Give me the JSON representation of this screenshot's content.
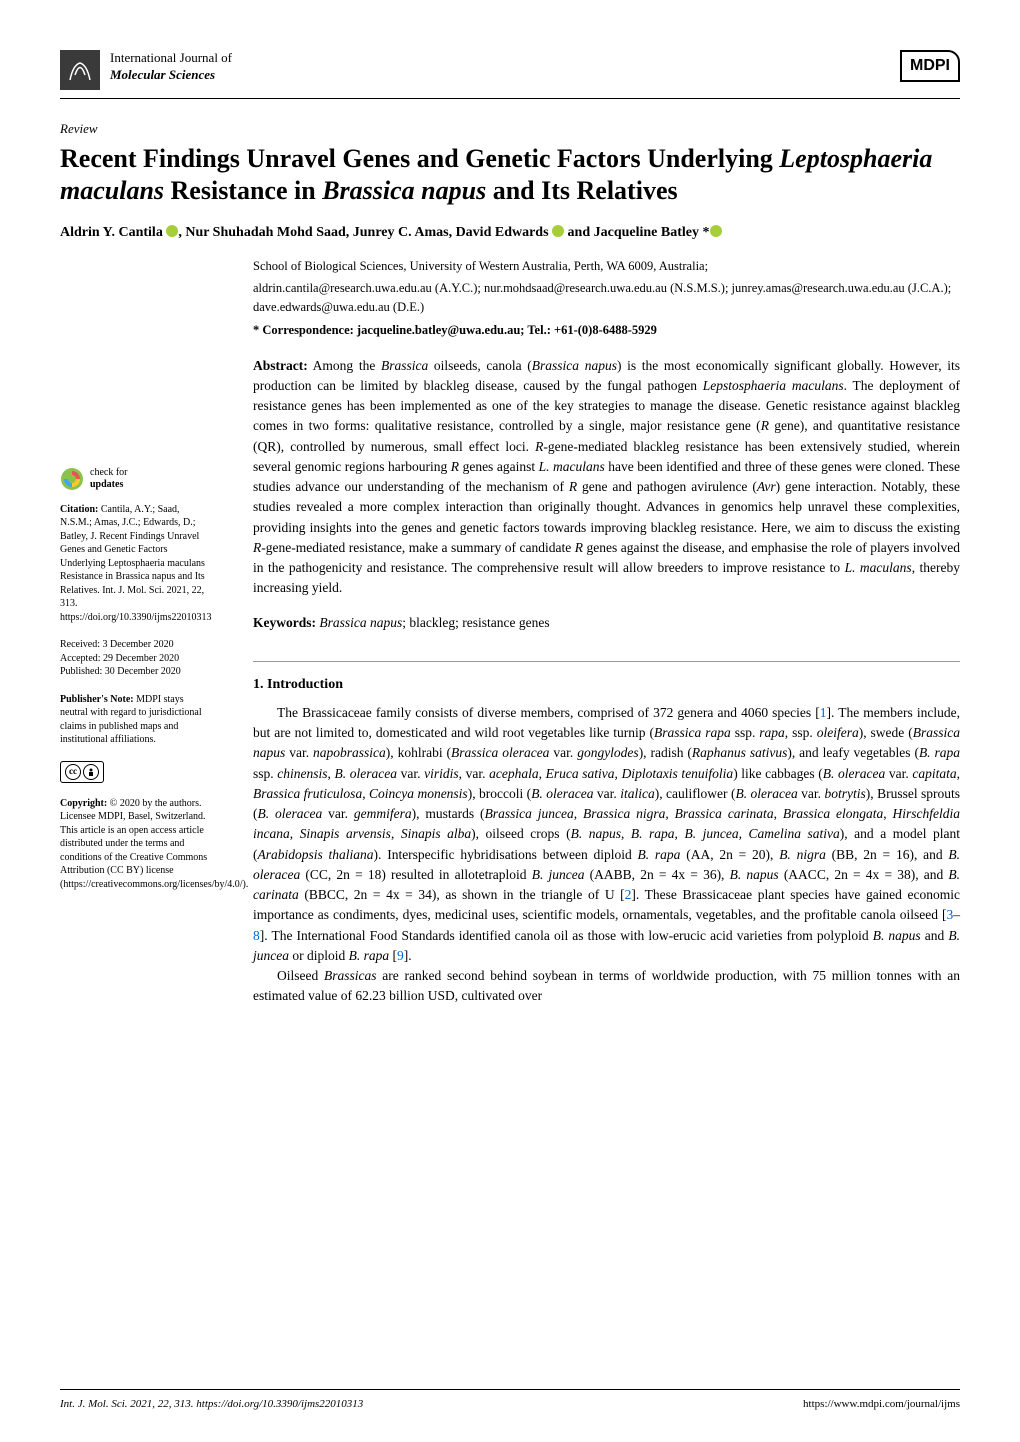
{
  "journal": {
    "line1": "International Journal of",
    "line2": "Molecular Sciences",
    "publisher": "MDPI"
  },
  "article": {
    "type": "Review",
    "title_html": "Recent Findings Unravel Genes and Genetic Factors Underlying <i>Leptosphaeria maculans</i> Resistance in <i>Brassica napus</i> and Its Relatives",
    "authors_html": "Aldrin Y. Cantila <span class='orcid-icon'></span>, Nur Shuhadah Mohd Saad, Junrey C. Amas, David Edwards <span class='orcid-icon'></span> and Jacqueline Batley *<span class='orcid-icon'></span>",
    "affiliation": "School of Biological Sciences, University of Western Australia, Perth, WA 6009, Australia;",
    "emails": "aldrin.cantila@research.uwa.edu.au (A.Y.C.); nur.mohdsaad@research.uwa.edu.au (N.S.M.S.); junrey.amas@research.uwa.edu.au (J.C.A.); dave.edwards@uwa.edu.au (D.E.)",
    "correspondence": "* Correspondence: jacqueline.batley@uwa.edu.au; Tel.: +61-(0)8-6488-5929",
    "abstract_label": "Abstract:",
    "abstract_html": "Among the <i>Brassica</i> oilseeds, canola (<i>Brassica napus</i>) is the most economically significant globally. However, its production can be limited by blackleg disease, caused by the fungal pathogen <i>Lepstosphaeria maculans</i>. The deployment of resistance genes has been implemented as one of the key strategies to manage the disease. Genetic resistance against blackleg comes in two forms: qualitative resistance, controlled by a single, major resistance gene (<i>R</i> gene), and quantitative resistance (QR), controlled by numerous, small effect loci. <i>R</i>-gene-mediated blackleg resistance has been extensively studied, wherein several genomic regions harbouring <i>R</i> genes against <i>L. maculans</i> have been identified and three of these genes were cloned. These studies advance our understanding of the mechanism of <i>R</i> gene and pathogen avirulence (<i>Avr</i>) gene interaction. Notably, these studies revealed a more complex interaction than originally thought. Advances in genomics help unravel these complexities, providing insights into the genes and genetic factors towards improving blackleg resistance. Here, we aim to discuss the existing <i>R</i>-gene-mediated resistance, make a summary of candidate <i>R</i> genes against the disease, and emphasise the role of players involved in the pathogenicity and resistance. The comprehensive result will allow breeders to improve resistance to <i>L. maculans</i>, thereby increasing yield.",
    "keywords_label": "Keywords:",
    "keywords_html": "<i>Brassica napus</i>; blackleg; resistance genes"
  },
  "section1": {
    "heading": "1. Introduction",
    "para1_html": "The Brassicaceae family consists of diverse members, comprised of 372 genera and 4060 species [<span class='ref-link'>1</span>]. The members include, but are not limited to, domesticated and wild root vegetables like turnip (<i>Brassica rapa</i> ssp. <i>rapa</i>, ssp. <i>oleifera</i>), swede (<i>Brassica napus</i> var. <i>napobrassica</i>), kohlrabi (<i>Brassica oleracea</i> var. <i>gongylodes</i>), radish (<i>Raphanus sativus</i>), and leafy vegetables (<i>B. rapa</i> ssp. <i>chinensis</i>, <i>B. oleracea</i> var. <i>viridis</i>, var. <i>acephala</i>, <i>Eruca sativa</i>, <i>Diplotaxis tenuifolia</i>) like cabbages (<i>B. oleracea</i> var. <i>capitata</i>, <i>Brassica fruticulosa</i>, <i>Coincya monensis</i>), broccoli (<i>B. oleracea</i> var. <i>italica</i>), cauliflower (<i>B. oleracea</i> var. <i>botrytis</i>), Brussel sprouts (<i>B. oleracea</i> var. <i>gemmifera</i>), mustards (<i>Brassica juncea</i>, <i>Brassica nigra</i>, <i>Brassica carinata</i>, <i>Brassica elongata</i>, <i>Hirschfeldia incana</i>, <i>Sinapis arvensis</i>, <i>Sinapis alba</i>), oilseed crops (<i>B. napus</i>, <i>B. rapa</i>, <i>B. juncea</i>, <i>Camelina sativa</i>), and a model plant (<i>Arabidopsis thaliana</i>). Interspecific hybridisations between diploid <i>B. rapa</i> (AA, 2n = 20), <i>B. nigra</i> (BB, 2n = 16), and <i>B. oleracea</i> (CC, 2n = 18) resulted in allotetraploid <i>B. juncea</i> (AABB, 2n = 4x = 36), <i>B. napus</i> (AACC, 2n = 4x = 38), and <i>B. carinata</i> (BBCC, 2n = 4x = 34), as shown in the triangle of U [<span class='ref-link'>2</span>]. These Brassicaceae plant species have gained economic importance as condiments, dyes, medicinal uses, scientific models, ornamentals, vegetables, and the profitable canola oilseed [<span class='ref-link'>3</span>–<span class='ref-link'>8</span>]. The International Food Standards identified canola oil as those with low-erucic acid varieties from polyploid <i>B. napus</i> and <i>B. juncea</i> or diploid <i>B. rapa</i> [<span class='ref-link'>9</span>].",
    "para2_html": "Oilseed <i>Brassicas</i> are ranked second behind soybean in terms of worldwide production, with 75 million tonnes with an estimated value of 62.23 billion USD, cultivated over"
  },
  "sidebar": {
    "check_updates_line1": "check for",
    "check_updates_line2": "updates",
    "citation_label": "Citation:",
    "citation_text": "Cantila, A.Y.; Saad, N.S.M.; Amas, J.C.; Edwards, D.; Batley, J. Recent Findings Unravel Genes and Genetic Factors Underlying Leptosphaeria maculans Resistance in Brassica napus and Its Relatives. Int. J. Mol. Sci. 2021, 22, 313. https://doi.org/10.3390/ijms22010313",
    "received": "Received: 3 December 2020",
    "accepted": "Accepted: 29 December 2020",
    "published": "Published: 30 December 2020",
    "publisher_note_label": "Publisher's Note:",
    "publisher_note": "MDPI stays neutral with regard to jurisdictional claims in published maps and institutional affiliations.",
    "copyright_label": "Copyright:",
    "copyright_text": "© 2020 by the authors. Licensee MDPI, Basel, Switzerland. This article is an open access article distributed under the terms and conditions of the Creative Commons Attribution (CC BY) license (https://creativecommons.org/licenses/by/4.0/)."
  },
  "footer": {
    "left": "Int. J. Mol. Sci. 2021, 22, 313. https://doi.org/10.3390/ijms22010313",
    "right": "https://www.mdpi.com/journal/ijms"
  },
  "colors": {
    "background": "#ffffff",
    "text": "#000000",
    "link": "#0066cc",
    "orcid": "#a6ce39",
    "check_updates_outer": "#8bc34a",
    "check_updates_inner": "#ef5350"
  }
}
